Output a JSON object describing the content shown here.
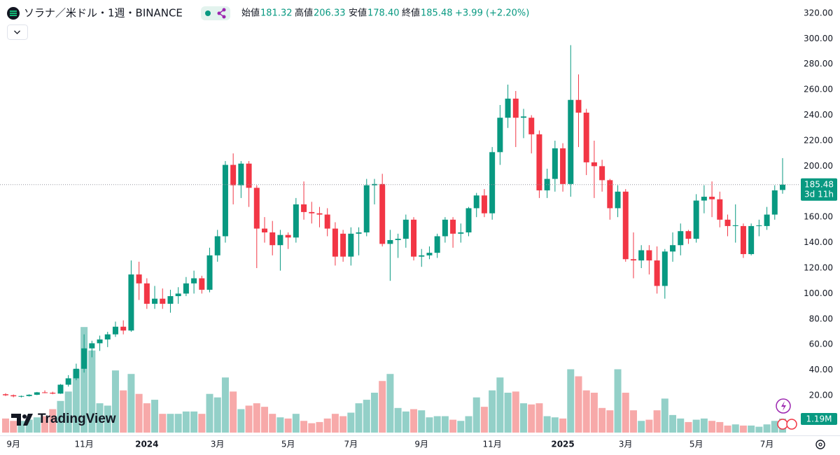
{
  "chart_data": {
    "type": "candlestick",
    "title": "ソラナ／米ドル・1週・BINANCE",
    "legend": {
      "open_label": "始値",
      "open_value": "181.32",
      "high_label": "高値",
      "high_value": "206.33",
      "low_label": "安値",
      "low_value": "178.40",
      "close_label": "終値",
      "close_value": "185.48",
      "change": "+3.99 (+2.20%)"
    },
    "brand": "TradingView",
    "categories": [
      null,
      "9月",
      null,
      null,
      null,
      null,
      null,
      null,
      null,
      null,
      "11月",
      null,
      null,
      null,
      null,
      null,
      null,
      null,
      "2024",
      null,
      null,
      null,
      null,
      null,
      null,
      null,
      null,
      "3月",
      null,
      null,
      null,
      null,
      null,
      null,
      null,
      null,
      "5月",
      null,
      null,
      null,
      null,
      null,
      null,
      null,
      "7月",
      null,
      null,
      null,
      null,
      null,
      null,
      null,
      null,
      "9月",
      null,
      null,
      null,
      null,
      null,
      null,
      null,
      null,
      "11月",
      null,
      null,
      null,
      null,
      null,
      null,
      null,
      null,
      "2025",
      null,
      null,
      null,
      null,
      null,
      null,
      null,
      "3月",
      null,
      null,
      null,
      null,
      null,
      null,
      null,
      null,
      "5月",
      null,
      null,
      null,
      null,
      null,
      null,
      null,
      null,
      "7月",
      null,
      null
    ],
    "open": [
      21.0,
      20.2,
      19.4,
      19.6,
      20.6,
      22.5,
      22.2,
      21.5,
      28.5,
      33.5,
      41,
      57,
      61,
      64,
      68,
      74,
      71,
      115,
      108,
      92,
      96,
      92,
      98,
      100,
      108,
      112,
      103,
      130,
      145,
      201,
      185,
      202,
      183,
      151,
      148,
      138,
      146,
      144,
      170,
      164,
      163,
      162,
      151,
      147,
      129,
      147,
      148,
      185,
      186,
      139,
      142,
      143,
      158,
      129,
      130,
      132,
      145,
      158,
      147,
      148,
      167,
      177,
      163,
      211,
      238,
      253,
      238,
      238,
      225,
      181,
      190,
      214,
      186,
      252,
      242,
      203,
      200,
      189,
      167,
      180,
      127,
      126,
      134,
      126,
      106,
      133,
      138,
      149,
      143,
      173,
      176,
      174,
      158,
      153,
      153,
      131,
      153,
      153,
      162,
      181.32
    ],
    "high": [
      21.8,
      20.8,
      20.0,
      21.0,
      22.8,
      24.0,
      23.0,
      29.0,
      36.0,
      45.0,
      68,
      63,
      67,
      70,
      78,
      79,
      126,
      125,
      112,
      106,
      104,
      103,
      105,
      113,
      118,
      114,
      136,
      150,
      204,
      210,
      204,
      204,
      185,
      160,
      157,
      150,
      148,
      175,
      188,
      172,
      168,
      167,
      156,
      150,
      152,
      152,
      190,
      190,
      194,
      150,
      147,
      162,
      160,
      135,
      137,
      147,
      160,
      160,
      155,
      168,
      179,
      182,
      215,
      248,
      264,
      259,
      245,
      240,
      228,
      198,
      220,
      218,
      295,
      272,
      245,
      220,
      205,
      190,
      185,
      182,
      148,
      138,
      138,
      137,
      135,
      148,
      155,
      150,
      178,
      185,
      188,
      180,
      162,
      170,
      155,
      155,
      158,
      168,
      185,
      206.33
    ],
    "low": [
      19.6,
      18.6,
      18.5,
      19.2,
      20.3,
      21.8,
      21.0,
      21.3,
      27.0,
      32.0,
      38,
      50,
      55,
      58,
      66,
      68,
      70,
      95,
      88,
      88,
      88,
      85,
      92,
      98,
      100,
      100,
      101,
      125,
      140,
      170,
      175,
      168,
      120,
      140,
      130,
      118,
      135,
      140,
      158,
      155,
      152,
      145,
      122,
      125,
      122,
      130,
      145,
      170,
      137,
      110,
      128,
      136,
      126,
      121,
      127,
      128,
      140,
      136,
      140,
      145,
      160,
      160,
      158,
      201,
      230,
      215,
      222,
      210,
      175,
      175,
      180,
      180,
      176,
      215,
      193,
      175,
      180,
      158,
      160,
      125,
      112,
      120,
      115,
      100,
      96,
      125,
      130,
      139,
      140,
      163,
      160,
      152,
      145,
      140,
      128,
      130,
      145,
      150,
      158,
      178.4
    ],
    "close": [
      20.2,
      19.4,
      19.6,
      20.6,
      22.5,
      22.2,
      21.5,
      28.5,
      33.5,
      41,
      57,
      61,
      64,
      68,
      74,
      71,
      115,
      108,
      92,
      96,
      92,
      98,
      100,
      108,
      112,
      103,
      130,
      145,
      201,
      185,
      202,
      183,
      151,
      148,
      138,
      146,
      144,
      170,
      164,
      163,
      162,
      151,
      129,
      129,
      147,
      148,
      185,
      186,
      139,
      142,
      143,
      158,
      129,
      130,
      132,
      145,
      158,
      147,
      148,
      167,
      177,
      163,
      211,
      238,
      253,
      238,
      239,
      225,
      181,
      190,
      214,
      186,
      252,
      242,
      203,
      200,
      189,
      167,
      180,
      127,
      126,
      134,
      126,
      106,
      133,
      138,
      149,
      143,
      173,
      176,
      174,
      158,
      153,
      153.6,
      131,
      153,
      153.5,
      162,
      181,
      185.48
    ],
    "volume": [
      1.2,
      1.0,
      1.0,
      1.1,
      1.3,
      1.4,
      2.0,
      2.7,
      3.5,
      5.4,
      9.0,
      7.0,
      2.5,
      2.3,
      5.3,
      3.6,
      5.0,
      3.3,
      2.5,
      2.8,
      1.6,
      1.6,
      1.6,
      1.8,
      1.8,
      1.6,
      3.3,
      3.0,
      4.7,
      3.5,
      2.0,
      2.3,
      2.5,
      2.2,
      1.6,
      1.3,
      1.2,
      1.6,
      1.0,
      0.8,
      0.9,
      1.2,
      1.6,
      1.4,
      1.7,
      2.5,
      2.8,
      3.4,
      4.4,
      5.0,
      2.1,
      1.8,
      2.0,
      1.9,
      1.3,
      1.4,
      1.4,
      1.1,
      1.0,
      1.4,
      3.0,
      2.2,
      3.6,
      4.7,
      3.4,
      3.5,
      2.5,
      2.4,
      2.5,
      1.4,
      1.3,
      1.2,
      5.4,
      4.8,
      3.6,
      3.4,
      2.1,
      1.9,
      5.4,
      3.4,
      1.9,
      1.0,
      1.1,
      1.9,
      2.9,
      1.5,
      1.2,
      0.9,
      1.1,
      1.2,
      1.0,
      0.9,
      0.6,
      0.7,
      0.6,
      0.6,
      0.5,
      0.7,
      1.0,
      1.19
    ],
    "last_volume_label": "1.19M",
    "last_price_label": "185.48",
    "countdown": "3d 11h",
    "ylim": [
      -10.2,
      330.4
    ],
    "volume_ylim": [
      0,
      37
    ],
    "yticks": [
      {
        "value": 20,
        "label": "20.00"
      },
      {
        "value": 40,
        "label": "40.00"
      },
      {
        "value": 60,
        "label": "60.00"
      },
      {
        "value": 80,
        "label": "80.00"
      },
      {
        "value": 100,
        "label": "100.00"
      },
      {
        "value": 120,
        "label": "120.00"
      },
      {
        "value": 140,
        "label": "140.00"
      },
      {
        "value": 160,
        "label": "160.00"
      },
      {
        "value": 180,
        "label": "180.00"
      },
      {
        "value": 200,
        "label": "200.00"
      },
      {
        "value": 220,
        "label": "220.00"
      },
      {
        "value": 240,
        "label": "240.00"
      },
      {
        "value": 260,
        "label": "260.00"
      },
      {
        "value": 280,
        "label": "280.00"
      },
      {
        "value": 300,
        "label": "300.00"
      },
      {
        "value": 320,
        "label": "320.00"
      }
    ],
    "up_color": "#089981",
    "down_color": "#f23645",
    "up_volume_color": "#93d0c8",
    "down_volume_color": "#f7a9a9"
  }
}
